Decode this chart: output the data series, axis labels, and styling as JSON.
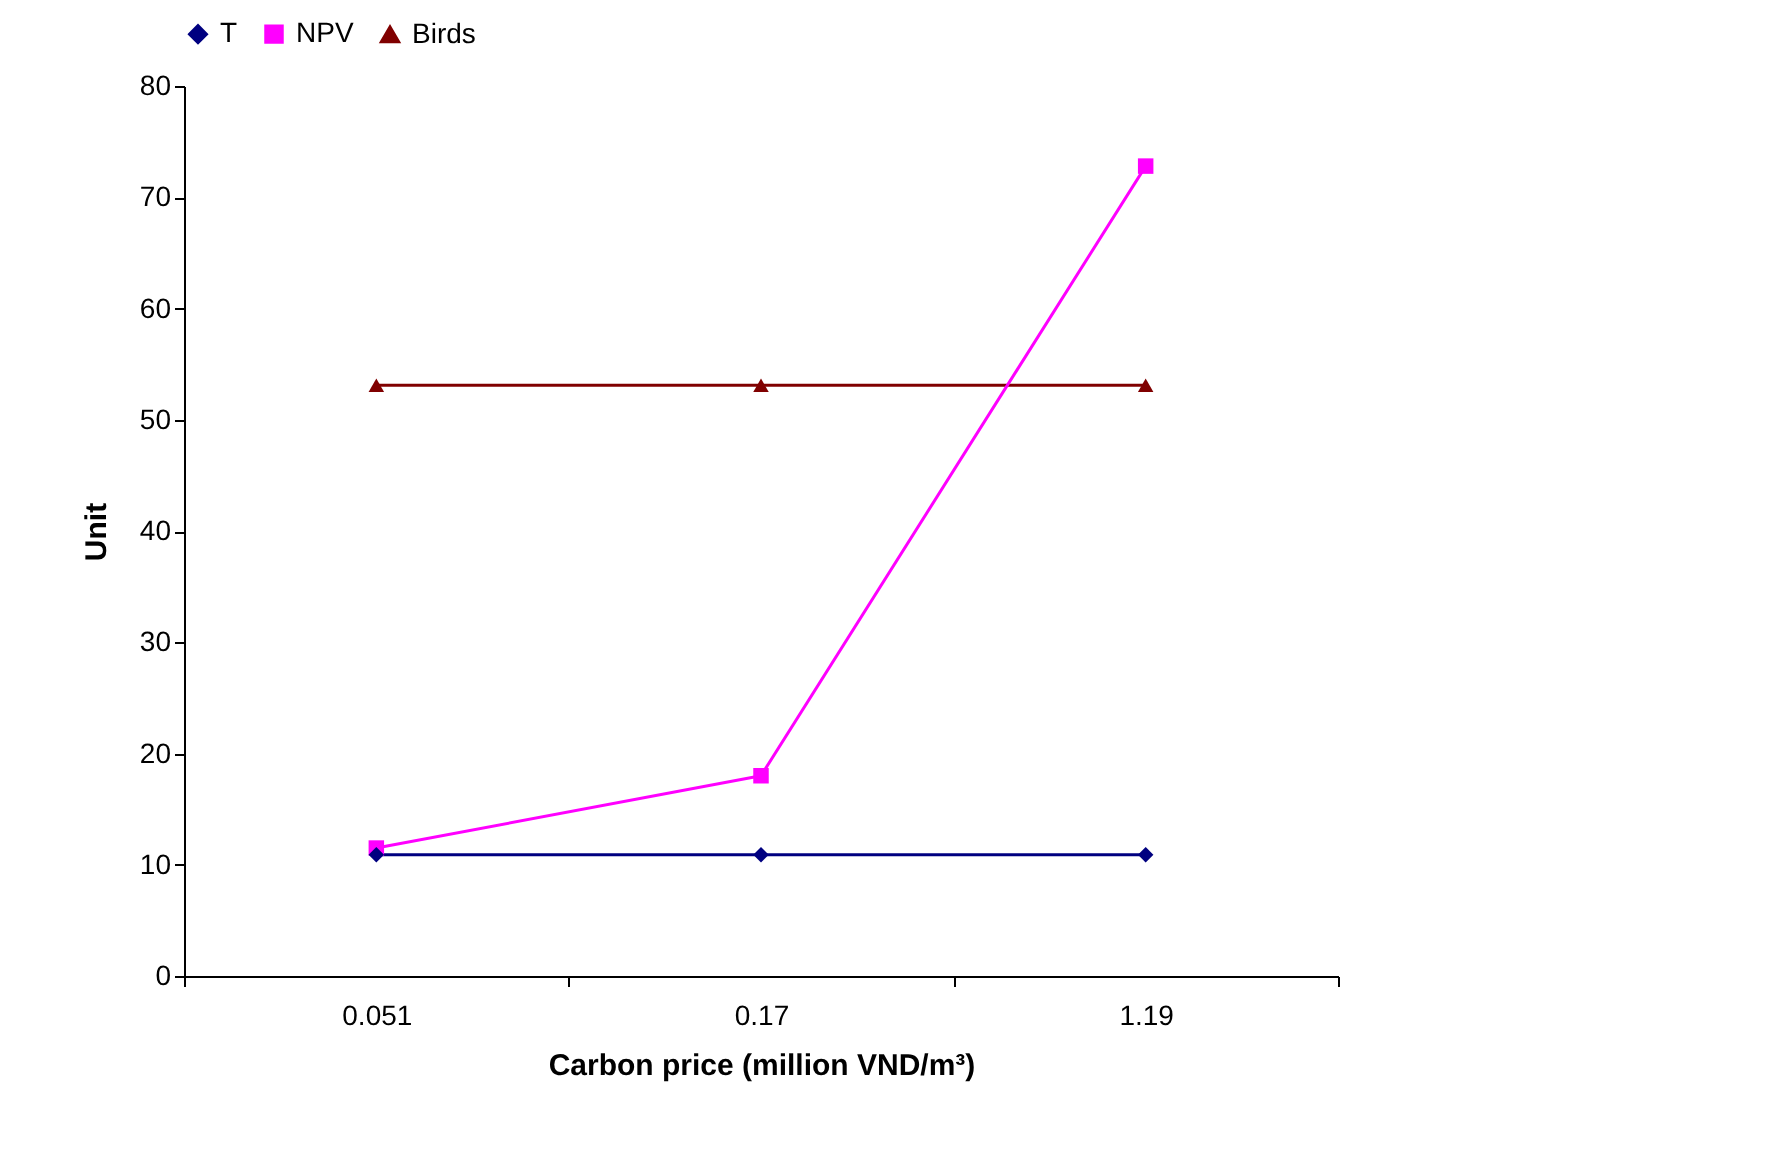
{
  "chart_data": {
    "type": "line",
    "categories": [
      "0.051",
      "0.17",
      "1.19"
    ],
    "series": [
      {
        "name": "T",
        "color": "#000080",
        "marker": "diamond",
        "values": [
          10.9,
          10.9,
          10.9
        ]
      },
      {
        "name": "NPV",
        "color": "#ff00ff",
        "marker": "square",
        "values": [
          11.5,
          18.0,
          72.8
        ]
      },
      {
        "name": "Birds",
        "color": "#800000",
        "marker": "triangle",
        "values": [
          53.1,
          53.1,
          53.1
        ]
      }
    ],
    "xlabel": "Carbon price (million VND/m³)",
    "ylabel": "Unit",
    "ylim": [
      0,
      80
    ],
    "yticks": [
      0,
      10,
      20,
      30,
      40,
      50,
      60,
      70,
      80
    ],
    "grid": false,
    "legend": "top",
    "line_style": "solid"
  }
}
